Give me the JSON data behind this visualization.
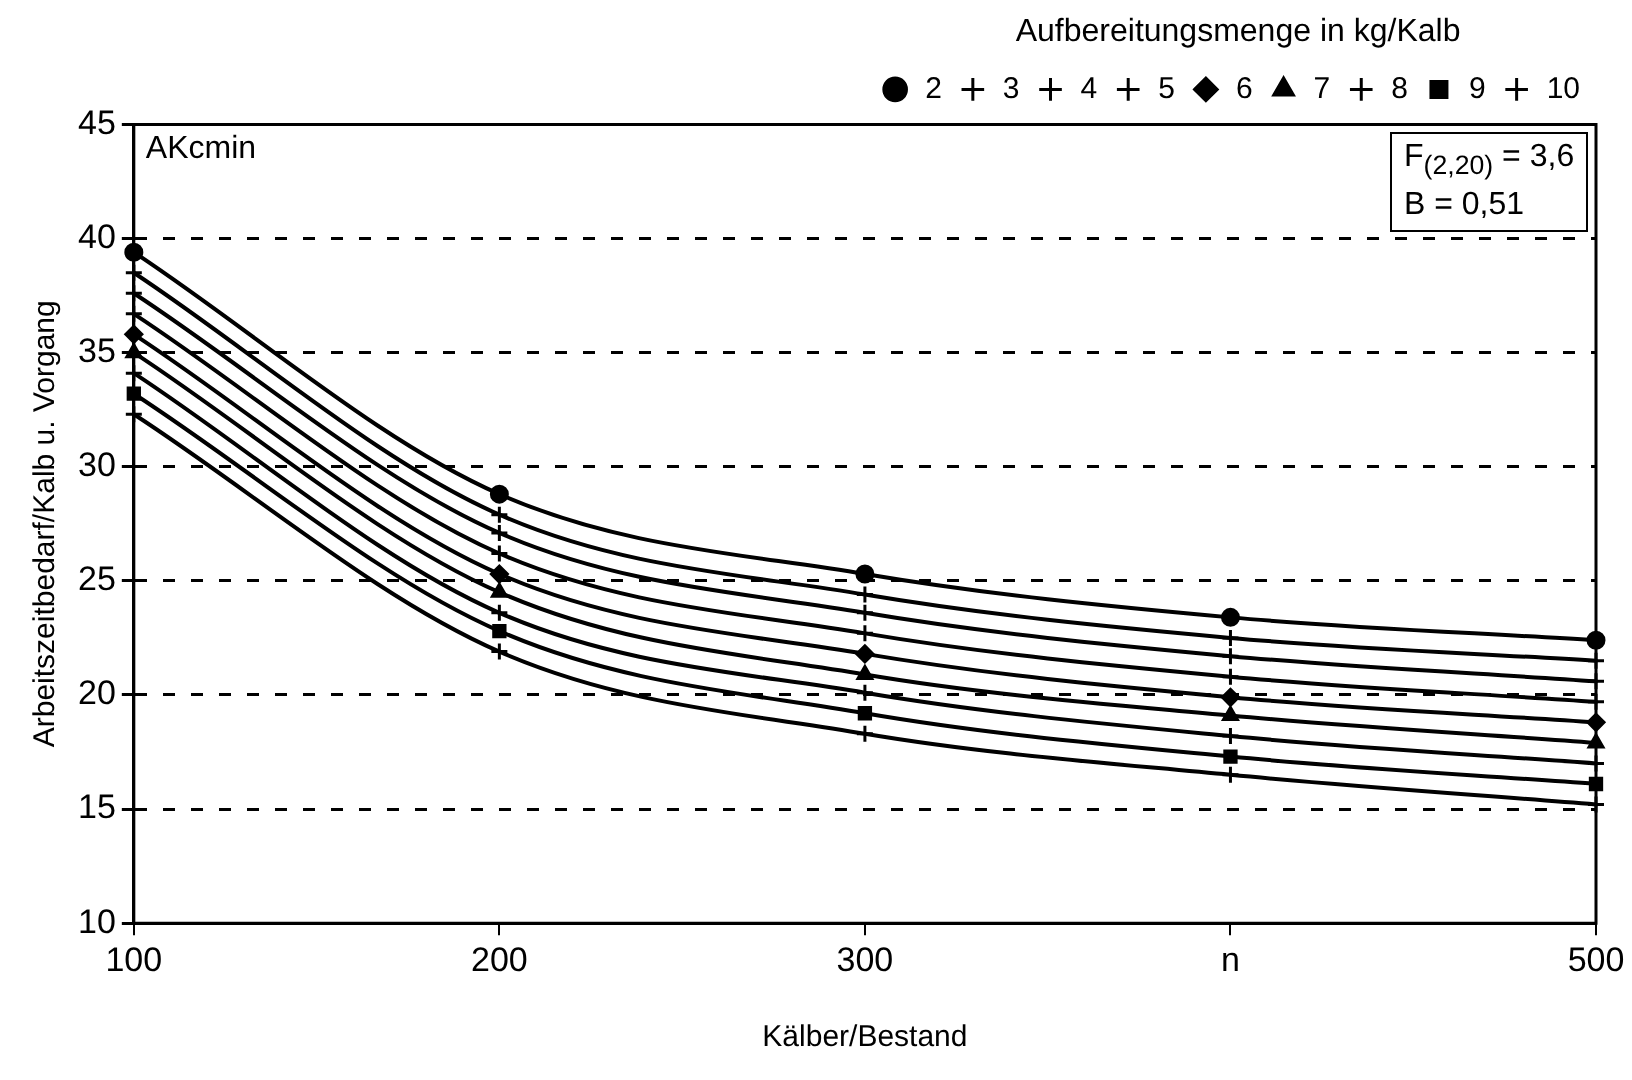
{
  "chart_data": {
    "type": "line",
    "xlabel": "Kälber/Bestand",
    "ylabel": "Arbeitszeitbedarf/Kalb u. Vorgang",
    "legend_title": "Aufbereitungsmenge in kg/Kalb",
    "legend": "top right",
    "grid": "y",
    "line_style": "solid",
    "x": [
      100,
      200,
      300,
      400,
      500
    ],
    "xlim": [
      100,
      500
    ],
    "xticks": [
      100,
      200,
      300,
      {
        "value": 400,
        "label": "n"
      },
      500
    ],
    "ylim": [
      10,
      45
    ],
    "yticks": [
      10,
      15,
      20,
      25,
      30,
      35,
      40,
      45
    ],
    "annotations": [
      "AKcmin",
      "F$_{(2,20)}$ = 3,6",
      "B = 0,51"
    ],
    "series": [
      {
        "name": "2",
        "color": "#000000",
        "marker": "circle",
        "values": [
          39.4,
          28.8,
          25.3,
          23.4,
          22.4
        ]
      },
      {
        "name": "3",
        "color": "#000000",
        "marker": "cross",
        "values": [
          38.5,
          27.9,
          24.4,
          22.5,
          21.5
        ]
      },
      {
        "name": "4",
        "color": "#000000",
        "marker": "cross",
        "values": [
          37.6,
          27.1,
          23.6,
          21.7,
          20.6
        ]
      },
      {
        "name": "5",
        "color": "#000000",
        "marker": "cross",
        "values": [
          36.7,
          26.2,
          22.7,
          20.8,
          19.7
        ]
      },
      {
        "name": "6",
        "color": "#000000",
        "marker": "diamond",
        "values": [
          35.8,
          25.3,
          21.8,
          19.9,
          18.8
        ]
      },
      {
        "name": "7",
        "color": "#000000",
        "marker": "triangle",
        "values": [
          35.0,
          24.5,
          20.9,
          19.1,
          17.9
        ]
      },
      {
        "name": "8",
        "color": "#000000",
        "marker": "cross",
        "values": [
          34.1,
          23.6,
          20.1,
          18.2,
          17.0
        ]
      },
      {
        "name": "9",
        "color": "#000000",
        "marker": "square",
        "values": [
          33.2,
          22.8,
          19.2,
          17.3,
          16.1
        ]
      },
      {
        "name": "10",
        "color": "#000000",
        "marker": "cross",
        "values": [
          32.3,
          21.9,
          18.3,
          16.5,
          15.2
        ]
      }
    ]
  }
}
